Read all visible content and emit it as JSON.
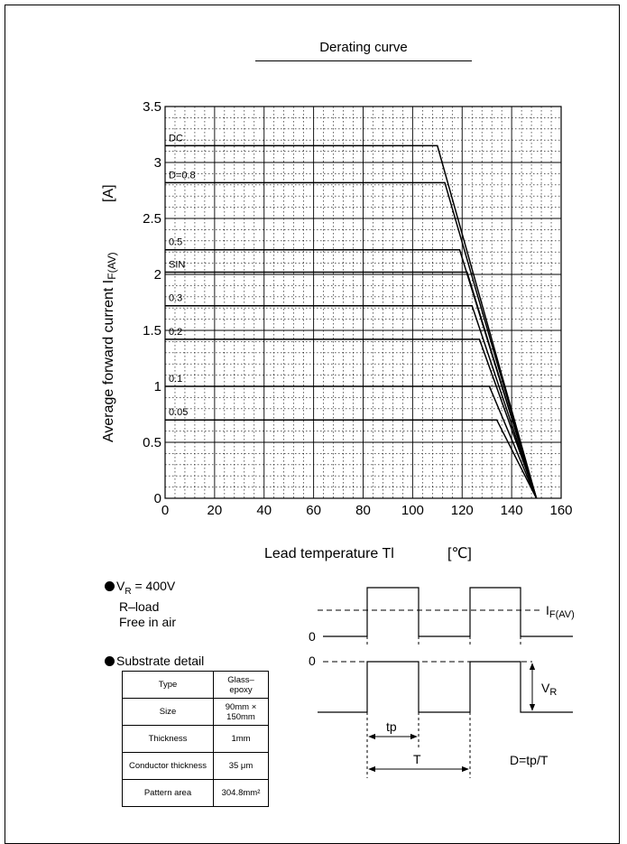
{
  "page": {
    "title": "Derating curve"
  },
  "chart_data": {
    "type": "line",
    "title": "Derating curve",
    "xlabel": "Lead temperature  Tl",
    "xunit": "[℃]",
    "ylabel": "Average forward current  I",
    "ylabel_sub": "F(AV)",
    "yunit": "[A]",
    "xlim": [
      0,
      160
    ],
    "ylim": [
      0,
      3.5
    ],
    "x_ticks": [
      0,
      20,
      40,
      60,
      80,
      100,
      120,
      140,
      160
    ],
    "y_ticks": [
      0,
      0.5,
      1,
      1.5,
      2,
      2.5,
      3,
      3.5
    ],
    "y_tick_labels": [
      "0",
      "0.5",
      "1",
      "1.5",
      "2",
      "2.5",
      "3",
      "3.5"
    ],
    "grid": true,
    "series": [
      {
        "name": "DC",
        "x": [
          0,
          110,
          150
        ],
        "y": [
          3.15,
          3.15,
          0
        ]
      },
      {
        "name": "D=0.8",
        "x": [
          0,
          113,
          150
        ],
        "y": [
          2.82,
          2.82,
          0
        ]
      },
      {
        "name": "0.5",
        "x": [
          0,
          119,
          150
        ],
        "y": [
          2.22,
          2.22,
          0
        ]
      },
      {
        "name": "SIN",
        "x": [
          0,
          122,
          150
        ],
        "y": [
          2.02,
          2.02,
          0
        ]
      },
      {
        "name": "0.3",
        "x": [
          0,
          124,
          150
        ],
        "y": [
          1.72,
          1.72,
          0
        ]
      },
      {
        "name": "0.2",
        "x": [
          0,
          127,
          150
        ],
        "y": [
          1.42,
          1.42,
          0
        ]
      },
      {
        "name": "0.1",
        "x": [
          0,
          131,
          150
        ],
        "y": [
          1.0,
          1.0,
          0
        ]
      },
      {
        "name": "0.05",
        "x": [
          0,
          134,
          150
        ],
        "y": [
          0.7,
          0.7,
          0
        ]
      }
    ]
  },
  "conditions": {
    "vr_label": "V",
    "vr_sub": "R",
    "vr_value": " = 400V",
    "load": "R–load",
    "air": "Free in air"
  },
  "substrate": {
    "heading": "Substrate detail",
    "rows": [
      {
        "label": "Type",
        "value": "Glass–epoxy"
      },
      {
        "label": "Size",
        "value": "90mm × 150mm"
      },
      {
        "label": "Thickness",
        "value": "1mm"
      },
      {
        "label": "Conductor thickness",
        "value": "35 μm"
      },
      {
        "label": "Pattern area",
        "value": "304.8mm²"
      }
    ]
  },
  "waveform": {
    "zero_label_top": "0",
    "zero_label_bottom": "0",
    "if_label": "I",
    "if_sub": "F(AV)",
    "vr_label": "V",
    "vr_sub": "R",
    "tp_label": "tp",
    "T_label": "T",
    "duty_label": "D=tp/T"
  }
}
